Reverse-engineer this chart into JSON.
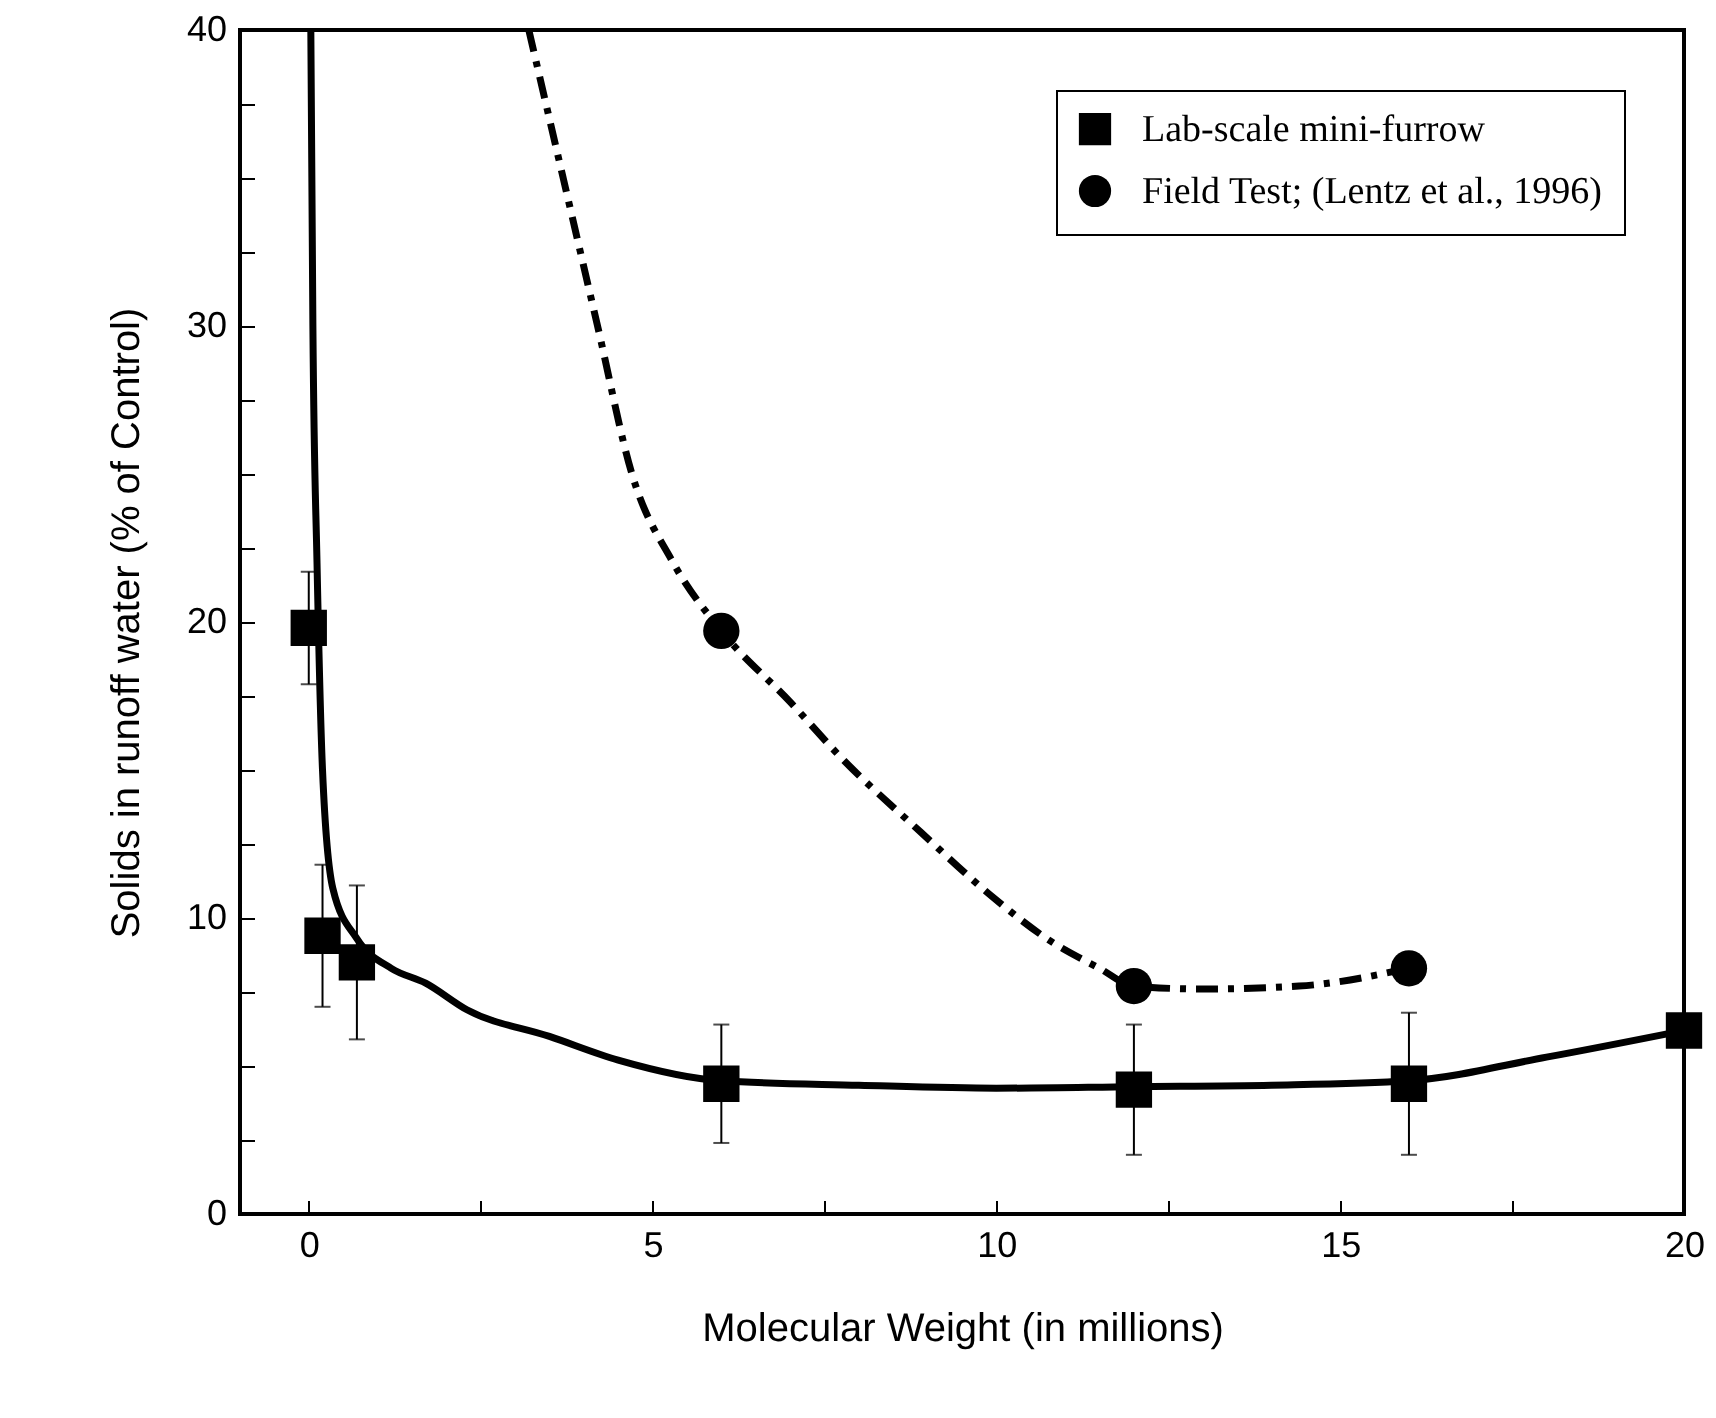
{
  "chart_data": {
    "type": "scatter",
    "xlabel": "Molecular Weight (in millions)",
    "ylabel": "Solids in runoff water (% of Control)",
    "xlim": [
      -1,
      20
    ],
    "ylim": [
      0,
      40
    ],
    "xticks": [
      0,
      {
        "value": 2.5,
        "label": null
      },
      5,
      {
        "value": 7.5,
        "label": null
      },
      10,
      {
        "value": 12.5,
        "label": null
      },
      15,
      {
        "value": 17.5,
        "label": null
      },
      20
    ],
    "yticks": [
      0,
      {
        "value": 2.5,
        "label": null
      },
      {
        "value": 5,
        "label": null
      },
      {
        "value": 7.5,
        "label": null
      },
      10,
      {
        "value": 12.5,
        "label": null
      },
      {
        "value": 15,
        "label": null
      },
      {
        "value": 17.5,
        "label": null
      },
      20,
      {
        "value": 22.5,
        "label": null
      },
      {
        "value": 25,
        "label": null
      },
      {
        "value": 27.5,
        "label": null
      },
      30,
      {
        "value": 32.5,
        "label": null
      },
      {
        "value": 35,
        "label": null
      },
      {
        "value": 37.5,
        "label": null
      },
      40
    ],
    "grid": false,
    "legend": "top right",
    "series": [
      {
        "name": "Lab-scale mini-furrow",
        "type": "scatter",
        "marker": "square",
        "color": "#000000",
        "x": [
          0,
          0.2,
          0.7,
          6,
          12,
          16,
          20
        ],
        "values": [
          19.8,
          9.4,
          8.5,
          4.4,
          4.2,
          4.4,
          6.2
        ],
        "errors": [
          1.9,
          2.4,
          2.6,
          2.0,
          2.2,
          2.4,
          null
        ]
      },
      {
        "name": "Field Test; (Lentz et al., 1996)",
        "type": "scatter",
        "marker": "circle",
        "color": "#000000",
        "x": [
          6,
          12,
          16
        ],
        "values": [
          19.7,
          7.7,
          8.3
        ]
      },
      {
        "type": "line",
        "line_style": "solid",
        "color": "#000000",
        "x": [
          0.03,
          0.06,
          0.12,
          0.2,
          0.35,
          0.7,
          1.2,
          1.7,
          2.3,
          3.5,
          4.5,
          6,
          8,
          10,
          12,
          14,
          16,
          18,
          20
        ],
        "values": [
          40,
          30,
          22,
          15,
          11,
          9.3,
          8.3,
          7.8,
          6.9,
          6.0,
          5.2,
          4.5,
          4.35,
          4.25,
          4.3,
          4.35,
          4.5,
          5.3,
          6.2
        ]
      },
      {
        "type": "line",
        "line_style": "dashed",
        "color": "#000000",
        "x": [
          3.2,
          3.7,
          4.2,
          4.7,
          5.3,
          6,
          7,
          7.75,
          8.9,
          9.9,
          10.8,
          11.5,
          12,
          13,
          14.4,
          16
        ],
        "values": [
          40,
          35,
          30,
          25,
          22,
          19.7,
          17.3,
          15.4,
          12.9,
          10.8,
          9.2,
          8.3,
          7.7,
          7.6,
          7.7,
          8.3
        ]
      }
    ]
  }
}
